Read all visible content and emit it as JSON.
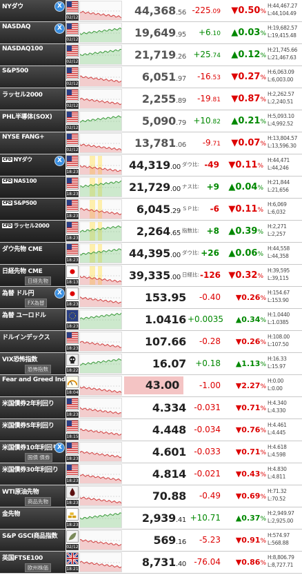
{
  "colors": {
    "up": "#008800",
    "down": "#dd0000",
    "label_bg": "#333333"
  },
  "rows": [
    {
      "name": "NYダウ",
      "x": true,
      "flag": "us-flag",
      "date": "02/12",
      "p1": "44,368",
      "p2": ".56",
      "chg": "-225",
      "chg2": ".09",
      "pct": "0.50",
      "dir": "down",
      "h": "H:44,467.27",
      "l": "L:44,104.49"
    },
    {
      "name": "NASDAQ",
      "x": true,
      "flag": "us-flag",
      "date": "02/12",
      "p1": "19,649",
      "p2": ".95",
      "chg": "+6",
      "chg2": ".10",
      "pct": "0.03",
      "dir": "up",
      "h": "H:19,682.57",
      "l": "L:19,415.48"
    },
    {
      "name": "NASDAQ100",
      "x": false,
      "flag": "us-flag",
      "date": "02/12",
      "p1": "21,719",
      "p2": ".26",
      "chg": "+25",
      "chg2": ".74",
      "pct": "0.12",
      "dir": "up",
      "h": "H:21,745.66",
      "l": "L:21,467.63"
    },
    {
      "name": "S&P500",
      "x": false,
      "flag": "us-flag",
      "date": "02/12",
      "p1": "6,051",
      "p2": ".97",
      "chg": "-16",
      "chg2": ".53",
      "pct": "0.27",
      "dir": "down",
      "h": "H:6,063.09",
      "l": "L:6,003.00"
    },
    {
      "name": "ラッセル2000",
      "x": false,
      "flag": "us-flag",
      "date": "02/12",
      "p1": "2,255",
      "p2": ".89",
      "chg": "-19",
      "chg2": ".81",
      "pct": "0.87",
      "dir": "down",
      "h": "H:2,262.57",
      "l": "L:2,240.51"
    },
    {
      "name": "PHL半導体(SOX)",
      "x": false,
      "flag": "us-flag",
      "date": "02/12",
      "p1": "5,090",
      "p2": ".79",
      "chg": "+10",
      "chg2": ".82",
      "pct": "0.21",
      "dir": "up",
      "h": "H:5,093.10",
      "l": "L:4,992.52"
    },
    {
      "name": "NYSE FANG+",
      "x": false,
      "flag": "us-flag",
      "date": "02/12",
      "p1": "13,781",
      "p2": ".06",
      "chg": "-9",
      "chg2": ".71",
      "pct": "0.07",
      "dir": "down",
      "h": "H:13,804.57",
      "l": "L:13,596.30"
    }
  ],
  "cfd": [
    {
      "name": "NYダウ",
      "tag": "CFD",
      "x": true,
      "flag": "us-flag",
      "date": "18:23",
      "p1": "44,319",
      "p2": ".00",
      "spread": "ダウ比:",
      "chg": "-49",
      "pct": "0.11",
      "dir": "down",
      "h": "H:44,471",
      "l": "L:44,246"
    },
    {
      "name": "NAS100",
      "tag": "CFD",
      "x": false,
      "flag": "us-flag",
      "date": "18:23",
      "p1": "21,729",
      "p2": ".00",
      "spread": "ナス比:",
      "chg": "+9",
      "pct": "0.04",
      "dir": "up",
      "h": "H:21,844",
      "l": "L:21,656"
    },
    {
      "name": "S&P500",
      "tag": "CFD",
      "x": false,
      "flag": "us-flag",
      "date": "18:23",
      "p1": "6,045",
      "p2": ".29",
      "spread": "ＳＰ比:",
      "chg": "-6",
      "pct": "0.11",
      "dir": "down",
      "h": "H:6,069",
      "l": "L:6,032"
    },
    {
      "name": "ラッセル2000",
      "tag": "CFD",
      "x": false,
      "flag": "us-flag",
      "date": "18:23",
      "p1": "2,264",
      "p2": ".65",
      "spread": "指数比:",
      "chg": "+8",
      "pct": "0.39",
      "dir": "up",
      "h": "H:2,271",
      "l": "L:2,257"
    },
    {
      "name": "ダウ先物 CME",
      "tag": "",
      "x": false,
      "flag": "us-flag",
      "date": "18:23",
      "p1": "44,395",
      "p2": ".00",
      "spread": "ダウ比:",
      "chg": "+26",
      "pct": "0.06",
      "dir": "up",
      "h": "H:44,558",
      "l": "L:44,358"
    },
    {
      "name": "日経先物 CME",
      "tag": "",
      "sub": "日経先物",
      "x": false,
      "flag": "jp-flag",
      "date": "18:13",
      "p1": "39,335",
      "p2": ".00",
      "spread": "日経比:",
      "chg": "-126",
      "pct": "0.32",
      "dir": "down",
      "h": "H:39,595",
      "l": "L:39,115"
    }
  ],
  "fx": [
    {
      "name": "為替 ドル円",
      "sub": "FX為替",
      "x": true,
      "flag": "jp-flag",
      "date": "18:23",
      "price": "153.95",
      "chg": "-0.40",
      "pct": "0.26",
      "dir": "down",
      "h": "H:154.67",
      "l": "L:153.90"
    },
    {
      "name": "為替 ユーロドル",
      "sub": "",
      "x": false,
      "flag": "eu-flag",
      "date": "18:23",
      "price": "1.0416",
      "chg": "+0.0035",
      "pct": "0.34",
      "dir": "up",
      "h": "H:1.0440",
      "l": "L:1.0385"
    },
    {
      "name": "ドルインデックス",
      "sub": "",
      "x": false,
      "flag": "us-flag",
      "date": "18:23",
      "price": "107.66",
      "chg": "-0.28",
      "pct": "0.26",
      "dir": "down",
      "h": "H:108.00",
      "l": "L:107.50"
    },
    {
      "name": "VIX恐怖指数",
      "sub": "恐怖指数",
      "x": false,
      "flag": "skull-icon",
      "date": "18:22",
      "price": "16.07",
      "chg": "+0.18",
      "pct": "1.13",
      "dir": "up",
      "h": "H:16.33",
      "l": "L:15.97"
    },
    {
      "name": "Fear and Greed Index",
      "sub": "",
      "x": false,
      "flag": "fg-icon",
      "date": "18:04",
      "price": "43.00",
      "chg": "-1.00",
      "pct": "2.27",
      "dir": "down",
      "h": "H:0.00",
      "l": "L:0.00"
    },
    {
      "name": "米国債券2年利回り",
      "sub": "",
      "x": false,
      "flag": "us-flag",
      "date": "18:23",
      "price": "4.334",
      "chg": "-0.031",
      "pct": "0.71",
      "dir": "down",
      "h": "H:4.340",
      "l": "L:4.330"
    },
    {
      "name": "米国債券5年利回り",
      "sub": "",
      "x": false,
      "flag": "us-flag",
      "date": "18:15",
      "price": "4.448",
      "chg": "-0.034",
      "pct": "0.76",
      "dir": "down",
      "h": "H:4.461",
      "l": "L:4.445"
    },
    {
      "name": "米国債券10年利回り",
      "sub": "国債 債券",
      "x": true,
      "flag": "us-flag",
      "date": "18:23",
      "price": "4.601",
      "chg": "-0.033",
      "pct": "0.71",
      "dir": "down",
      "h": "H:4.618",
      "l": "L:4.598"
    },
    {
      "name": "米国債券30年利回り",
      "sub": "",
      "x": false,
      "flag": "us-flag",
      "date": "18:23",
      "price": "4.814",
      "chg": "-0.021",
      "pct": "0.43",
      "dir": "down",
      "h": "H:4.830",
      "l": "L:4.811"
    },
    {
      "name": "WTI原油先物",
      "sub": "商品先物",
      "x": false,
      "flag": "oil-icon",
      "date": "18:23",
      "price": "70.88",
      "chg": "-0.49",
      "pct": "0.69",
      "dir": "down",
      "h": "H:71.32",
      "l": "L:70.52"
    },
    {
      "name": "金先物",
      "sub": "",
      "x": false,
      "flag": "gold-icon",
      "date": "18:23",
      "price": "2,939",
      "price2": ".41",
      "chg": "+10.71",
      "pct": "0.37",
      "dir": "up",
      "h": "H:2,949.97",
      "l": "L:2,925.00"
    },
    {
      "name": "S&P GSCI商品指数",
      "sub": "",
      "x": false,
      "flag": "leaf-icon",
      "date": "02/12",
      "price": "569",
      "price2": ".16",
      "chg": "-5.23",
      "pct": "0.91",
      "dir": "down",
      "h": "H:574.97",
      "l": "L:568.88"
    },
    {
      "name": "英国FTSE100",
      "sub": "欧州株価",
      "x": false,
      "flag": "uk-flag",
      "date": "18:21",
      "price": "8,731",
      "price2": ".40",
      "chg": "-76.04",
      "pct": "0.86",
      "dir": "down",
      "h": "H:8,806.79",
      "l": "L:8,727.71"
    }
  ]
}
